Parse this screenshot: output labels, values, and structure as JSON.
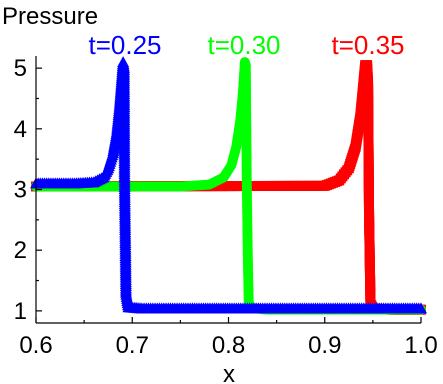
{
  "chart_data": {
    "type": "line",
    "title": "Pressure",
    "xlabel": "x",
    "ylabel": "",
    "xlim": [
      0.6,
      1.0
    ],
    "ylim": [
      0.8,
      5.2
    ],
    "xticks": [
      "0.6",
      "0.7",
      "0.8",
      "0.9",
      "1.0"
    ],
    "yticks": [
      "1",
      "2",
      "3",
      "4",
      "5"
    ],
    "grid": false,
    "legend": "top",
    "series": [
      {
        "name": "t=0.25",
        "color": "#0000ff",
        "marker": "triangle",
        "points": [
          [
            0.6,
            3.1
          ],
          [
            0.64,
            3.1
          ],
          [
            0.66,
            3.12
          ],
          [
            0.67,
            3.2
          ],
          [
            0.675,
            3.35
          ],
          [
            0.68,
            3.6
          ],
          [
            0.684,
            3.95
          ],
          [
            0.687,
            4.4
          ],
          [
            0.689,
            4.8
          ],
          [
            0.6905,
            5.1
          ],
          [
            0.6915,
            5.0
          ],
          [
            0.692,
            3.15
          ],
          [
            0.6935,
            1.3
          ],
          [
            0.696,
            1.06
          ],
          [
            0.71,
            1.04
          ],
          [
            1.0,
            1.04
          ]
        ]
      },
      {
        "name": "t=0.30",
        "color": "#00ff00",
        "marker": "circle",
        "points": [
          [
            0.6,
            3.05
          ],
          [
            0.75,
            3.05
          ],
          [
            0.78,
            3.08
          ],
          [
            0.795,
            3.2
          ],
          [
            0.803,
            3.4
          ],
          [
            0.808,
            3.7
          ],
          [
            0.812,
            4.1
          ],
          [
            0.815,
            4.6
          ],
          [
            0.817,
            5.1
          ],
          [
            0.818,
            5.05
          ],
          [
            0.819,
            3.1
          ],
          [
            0.82,
            1.95
          ],
          [
            0.821,
            1.15
          ],
          [
            0.823,
            1.05
          ],
          [
            0.84,
            1.02
          ],
          [
            1.0,
            1.02
          ]
        ]
      },
      {
        "name": "t=0.35",
        "color": "#ff0000",
        "marker": "square",
        "points": [
          [
            0.6,
            3.05
          ],
          [
            0.9,
            3.06
          ],
          [
            0.915,
            3.15
          ],
          [
            0.925,
            3.35
          ],
          [
            0.932,
            3.7
          ],
          [
            0.937,
            4.2
          ],
          [
            0.94,
            4.7
          ],
          [
            0.942,
            5.05
          ],
          [
            0.944,
            5.05
          ],
          [
            0.945,
            4.75
          ],
          [
            0.946,
            2.62
          ],
          [
            0.9475,
            1.12
          ],
          [
            0.95,
            1.04
          ],
          [
            0.97,
            1.02
          ],
          [
            1.0,
            1.02
          ]
        ]
      }
    ]
  }
}
